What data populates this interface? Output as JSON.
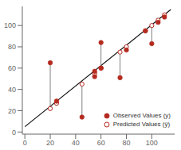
{
  "chart_data": {
    "type": "scatter",
    "xlim": [
      -2,
      118
    ],
    "ylim": [
      -2,
      118
    ],
    "xticks": [
      0,
      20,
      40,
      60,
      80,
      100
    ],
    "yticks": [
      0,
      20,
      40,
      60,
      80,
      100
    ],
    "grid": false,
    "legend": "lower right",
    "series": [
      {
        "type": "line",
        "color": "#111111",
        "x": [
          0,
          115
        ],
        "values": [
          5,
          115
        ]
      },
      {
        "type": "residual",
        "color": "#808080",
        "x": [
          20,
          25,
          45,
          55,
          55,
          60,
          60,
          75,
          80,
          95,
          100,
          105,
          110
        ],
        "from": [
          65,
          29,
          14,
          57,
          52,
          84,
          60,
          51,
          77,
          95,
          83,
          103,
          108
        ],
        "to": [
          22,
          27,
          45,
          55,
          55,
          60,
          60,
          75,
          80,
          95,
          100,
          105,
          110
        ]
      },
      {
        "name": "Observed Values (y)",
        "type": "scatter",
        "marker": "circle",
        "color": "#b52b20",
        "x": [
          20,
          25,
          45,
          55,
          55,
          60,
          60,
          75,
          80,
          95,
          100,
          105,
          110
        ],
        "values": [
          65,
          29,
          14,
          57,
          52,
          84,
          60,
          51,
          77,
          95,
          83,
          103,
          108
        ]
      },
      {
        "name": "Predicted Values (ŷ)",
        "type": "scatter",
        "marker": "open_circle",
        "color": "#b52b20",
        "x": [
          20,
          25,
          45,
          55,
          55,
          60,
          60,
          75,
          80,
          95,
          100,
          105,
          110
        ],
        "values": [
          22,
          27,
          45,
          55,
          55,
          60,
          60,
          75,
          80,
          95,
          100,
          105,
          110
        ]
      }
    ]
  }
}
